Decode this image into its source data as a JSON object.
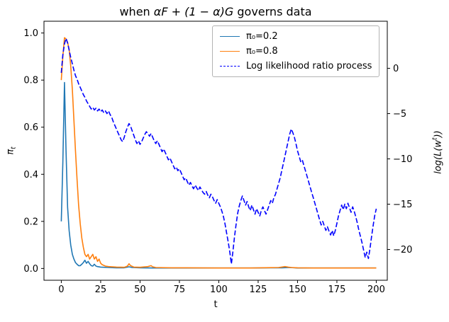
{
  "figure": {
    "title_parts": {
      "pre": "when ",
      "math": "αF + (1 − α)G",
      "post": " governs data"
    },
    "xlabel": "t",
    "left_ylabel": {
      "base": "π",
      "sub": "t"
    },
    "right_ylabel": {
      "pre": "log(L(w",
      "sup": "t",
      "post": "))"
    }
  },
  "legend": {
    "items": [
      {
        "label": "π₀=0.2"
      },
      {
        "label": "π₀=0.8"
      },
      {
        "label": "Log likelihood ratio process"
      }
    ]
  },
  "chart_data": {
    "type": "line",
    "title": "when αF + (1 − α)G governs data",
    "xlabel": "t",
    "grid": false,
    "legend_position": "upper center-right",
    "xlim": [
      -11,
      207
    ],
    "x_ticks": [
      0,
      25,
      50,
      75,
      100,
      125,
      150,
      175,
      200
    ],
    "left_axis": {
      "label": "π_t",
      "lim": [
        -0.05,
        1.05
      ],
      "ticks": [
        0.0,
        0.2,
        0.4,
        0.6,
        0.8,
        1.0
      ]
    },
    "right_axis": {
      "label": "log(L(w^t))",
      "lim": [
        -23.4,
        5.2
      ],
      "ticks": [
        0,
        -5,
        -10,
        -15,
        -20
      ]
    },
    "series": [
      {
        "name": "π₀=0.2",
        "axis": "left",
        "color": "#1f77b4",
        "style": "solid",
        "points": [
          [
            0,
            0.2
          ],
          [
            1,
            0.45
          ],
          [
            2,
            0.79
          ],
          [
            3,
            0.5
          ],
          [
            4,
            0.26
          ],
          [
            5,
            0.16
          ],
          [
            6,
            0.1
          ],
          [
            7,
            0.06
          ],
          [
            8,
            0.04
          ],
          [
            9,
            0.025
          ],
          [
            10,
            0.018
          ],
          [
            11,
            0.012
          ],
          [
            12,
            0.012
          ],
          [
            13,
            0.018
          ],
          [
            14,
            0.025
          ],
          [
            15,
            0.035
          ],
          [
            16,
            0.022
          ],
          [
            17,
            0.03
          ],
          [
            18,
            0.02
          ],
          [
            19,
            0.012
          ],
          [
            20,
            0.01
          ],
          [
            21,
            0.018
          ],
          [
            22,
            0.01
          ],
          [
            23,
            0.008
          ],
          [
            25,
            0.006
          ],
          [
            30,
            0.004
          ],
          [
            35,
            0.003
          ],
          [
            40,
            0.003
          ],
          [
            43,
            0.007
          ],
          [
            45,
            0.004
          ],
          [
            50,
            0.003
          ],
          [
            60,
            0.002
          ],
          [
            80,
            0.002
          ],
          [
            100,
            0.002
          ],
          [
            120,
            0.002
          ],
          [
            140,
            0.003
          ],
          [
            145,
            0.004
          ],
          [
            150,
            0.002
          ],
          [
            175,
            0.002
          ],
          [
            200,
            0.002
          ]
        ]
      },
      {
        "name": "π₀=0.8",
        "axis": "left",
        "color": "#ff7f0e",
        "style": "solid",
        "points": [
          [
            0,
            0.8
          ],
          [
            1,
            0.9
          ],
          [
            2,
            0.98
          ],
          [
            3,
            0.975
          ],
          [
            4,
            0.96
          ],
          [
            5,
            0.93
          ],
          [
            6,
            0.86
          ],
          [
            7,
            0.76
          ],
          [
            8,
            0.63
          ],
          [
            9,
            0.5
          ],
          [
            10,
            0.38
          ],
          [
            11,
            0.27
          ],
          [
            12,
            0.19
          ],
          [
            13,
            0.13
          ],
          [
            14,
            0.09
          ],
          [
            15,
            0.06
          ],
          [
            16,
            0.05
          ],
          [
            17,
            0.06
          ],
          [
            18,
            0.04
          ],
          [
            19,
            0.05
          ],
          [
            20,
            0.06
          ],
          [
            21,
            0.04
          ],
          [
            22,
            0.05
          ],
          [
            23,
            0.03
          ],
          [
            24,
            0.04
          ],
          [
            25,
            0.022
          ],
          [
            26,
            0.016
          ],
          [
            28,
            0.01
          ],
          [
            30,
            0.008
          ],
          [
            35,
            0.006
          ],
          [
            40,
            0.005
          ],
          [
            42,
            0.01
          ],
          [
            43,
            0.02
          ],
          [
            44,
            0.012
          ],
          [
            46,
            0.006
          ],
          [
            50,
            0.005
          ],
          [
            55,
            0.008
          ],
          [
            57,
            0.012
          ],
          [
            58,
            0.007
          ],
          [
            60,
            0.004
          ],
          [
            70,
            0.003
          ],
          [
            80,
            0.003
          ],
          [
            100,
            0.002
          ],
          [
            120,
            0.002
          ],
          [
            138,
            0.004
          ],
          [
            140,
            0.006
          ],
          [
            142,
            0.008
          ],
          [
            144,
            0.006
          ],
          [
            146,
            0.004
          ],
          [
            150,
            0.003
          ],
          [
            160,
            0.002
          ],
          [
            180,
            0.002
          ],
          [
            200,
            0.002
          ]
        ]
      },
      {
        "name": "Log likelihood ratio process",
        "axis": "right",
        "color": "#0000ff",
        "style": "dashed",
        "points": [
          [
            0,
            -0.5
          ],
          [
            1,
            1.5
          ],
          [
            2,
            2.7
          ],
          [
            3,
            3.3
          ],
          [
            4,
            2.8
          ],
          [
            5,
            2.0
          ],
          [
            6,
            1.2
          ],
          [
            7,
            0.5
          ],
          [
            8,
            -0.2
          ],
          [
            9,
            -0.8
          ],
          [
            10,
            -1.2
          ],
          [
            11,
            -1.7
          ],
          [
            12,
            -2.1
          ],
          [
            13,
            -2.5
          ],
          [
            14,
            -2.9
          ],
          [
            15,
            -3.2
          ],
          [
            16,
            -3.6
          ],
          [
            17,
            -3.9
          ],
          [
            18,
            -4.2
          ],
          [
            19,
            -4.5
          ],
          [
            20,
            -4.3
          ],
          [
            21,
            -4.6
          ],
          [
            22,
            -4.4
          ],
          [
            23,
            -4.7
          ],
          [
            24,
            -4.5
          ],
          [
            25,
            -4.8
          ],
          [
            26,
            -4.6
          ],
          [
            27,
            -4.9
          ],
          [
            28,
            -4.7
          ],
          [
            29,
            -5.0
          ],
          [
            30,
            -4.7
          ],
          [
            31,
            -5.1
          ],
          [
            32,
            -5.4
          ],
          [
            33,
            -5.9
          ],
          [
            34,
            -6.3
          ],
          [
            35,
            -6.7
          ],
          [
            36,
            -7.1
          ],
          [
            37,
            -7.5
          ],
          [
            38,
            -7.9
          ],
          [
            39,
            -8.1
          ],
          [
            40,
            -7.6
          ],
          [
            41,
            -7.0
          ],
          [
            42,
            -6.5
          ],
          [
            43,
            -6.1
          ],
          [
            44,
            -6.4
          ],
          [
            45,
            -6.9
          ],
          [
            46,
            -7.4
          ],
          [
            47,
            -7.9
          ],
          [
            48,
            -8.3
          ],
          [
            49,
            -8.0
          ],
          [
            50,
            -8.4
          ],
          [
            51,
            -8.1
          ],
          [
            52,
            -7.7
          ],
          [
            53,
            -7.3
          ],
          [
            54,
            -7.0
          ],
          [
            55,
            -7.2
          ],
          [
            56,
            -7.5
          ],
          [
            57,
            -7.2
          ],
          [
            58,
            -7.6
          ],
          [
            59,
            -8.0
          ],
          [
            60,
            -8.3
          ],
          [
            61,
            -8.0
          ],
          [
            62,
            -8.4
          ],
          [
            63,
            -8.8
          ],
          [
            64,
            -9.2
          ],
          [
            65,
            -8.9
          ],
          [
            66,
            -9.3
          ],
          [
            67,
            -9.7
          ],
          [
            68,
            -10.1
          ],
          [
            69,
            -9.9
          ],
          [
            70,
            -10.3
          ],
          [
            71,
            -10.7
          ],
          [
            72,
            -11.1
          ],
          [
            73,
            -10.9
          ],
          [
            74,
            -11.3
          ],
          [
            75,
            -11.1
          ],
          [
            76,
            -11.5
          ],
          [
            77,
            -11.9
          ],
          [
            78,
            -12.3
          ],
          [
            79,
            -12.1
          ],
          [
            80,
            -12.5
          ],
          [
            81,
            -12.9
          ],
          [
            82,
            -12.6
          ],
          [
            83,
            -13.0
          ],
          [
            84,
            -13.3
          ],
          [
            85,
            -12.9
          ],
          [
            86,
            -13.2
          ],
          [
            87,
            -13.5
          ],
          [
            88,
            -13.1
          ],
          [
            89,
            -13.4
          ],
          [
            90,
            -13.7
          ],
          [
            91,
            -13.9
          ],
          [
            92,
            -13.6
          ],
          [
            93,
            -14.0
          ],
          [
            94,
            -14.3
          ],
          [
            95,
            -13.9
          ],
          [
            96,
            -14.2
          ],
          [
            97,
            -14.6
          ],
          [
            98,
            -14.9
          ],
          [
            99,
            -14.5
          ],
          [
            100,
            -14.9
          ],
          [
            101,
            -15.3
          ],
          [
            102,
            -15.8
          ],
          [
            103,
            -16.4
          ],
          [
            104,
            -17.2
          ],
          [
            105,
            -18.2
          ],
          [
            106,
            -19.2
          ],
          [
            107,
            -20.3
          ],
          [
            108,
            -21.6
          ],
          [
            109,
            -20.2
          ],
          [
            110,
            -18.6
          ],
          [
            111,
            -17.2
          ],
          [
            112,
            -16.0
          ],
          [
            113,
            -15.2
          ],
          [
            114,
            -14.6
          ],
          [
            115,
            -14.1
          ],
          [
            116,
            -14.6
          ],
          [
            117,
            -15.1
          ],
          [
            118,
            -14.7
          ],
          [
            119,
            -15.3
          ],
          [
            120,
            -15.7
          ],
          [
            121,
            -15.1
          ],
          [
            122,
            -15.6
          ],
          [
            123,
            -16.1
          ],
          [
            124,
            -15.5
          ],
          [
            125,
            -15.9
          ],
          [
            126,
            -16.3
          ],
          [
            127,
            -15.7
          ],
          [
            128,
            -15.3
          ],
          [
            129,
            -15.7
          ],
          [
            130,
            -16.1
          ],
          [
            131,
            -15.6
          ],
          [
            132,
            -15.1
          ],
          [
            133,
            -14.6
          ],
          [
            134,
            -14.9
          ],
          [
            135,
            -14.3
          ],
          [
            136,
            -13.9
          ],
          [
            137,
            -13.3
          ],
          [
            138,
            -12.7
          ],
          [
            139,
            -12.1
          ],
          [
            140,
            -11.3
          ],
          [
            141,
            -10.5
          ],
          [
            142,
            -9.7
          ],
          [
            143,
            -8.9
          ],
          [
            144,
            -8.1
          ],
          [
            145,
            -7.3
          ],
          [
            146,
            -6.7
          ],
          [
            147,
            -7.1
          ],
          [
            148,
            -7.6
          ],
          [
            149,
            -8.3
          ],
          [
            150,
            -9.1
          ],
          [
            151,
            -9.7
          ],
          [
            152,
            -10.3
          ],
          [
            153,
            -10.1
          ],
          [
            154,
            -10.7
          ],
          [
            155,
            -11.3
          ],
          [
            156,
            -11.9
          ],
          [
            157,
            -12.5
          ],
          [
            158,
            -13.1
          ],
          [
            159,
            -13.7
          ],
          [
            160,
            -14.3
          ],
          [
            161,
            -14.9
          ],
          [
            162,
            -15.5
          ],
          [
            163,
            -16.1
          ],
          [
            164,
            -16.7
          ],
          [
            165,
            -17.3
          ],
          [
            166,
            -16.9
          ],
          [
            167,
            -17.4
          ],
          [
            168,
            -17.9
          ],
          [
            169,
            -17.5
          ],
          [
            170,
            -18.0
          ],
          [
            171,
            -18.4
          ],
          [
            172,
            -17.9
          ],
          [
            173,
            -18.5
          ],
          [
            174,
            -17.9
          ],
          [
            175,
            -17.1
          ],
          [
            176,
            -16.3
          ],
          [
            177,
            -15.7
          ],
          [
            178,
            -15.1
          ],
          [
            179,
            -15.6
          ],
          [
            180,
            -15.0
          ],
          [
            181,
            -15.5
          ],
          [
            182,
            -14.9
          ],
          [
            183,
            -15.4
          ],
          [
            184,
            -15.9
          ],
          [
            185,
            -15.3
          ],
          [
            186,
            -15.8
          ],
          [
            187,
            -16.4
          ],
          [
            188,
            -17.1
          ],
          [
            189,
            -17.9
          ],
          [
            190,
            -18.6
          ],
          [
            191,
            -19.3
          ],
          [
            192,
            -20.1
          ],
          [
            193,
            -20.9
          ],
          [
            194,
            -20.3
          ],
          [
            195,
            -21.0
          ],
          [
            196,
            -19.9
          ],
          [
            197,
            -18.6
          ],
          [
            198,
            -17.4
          ],
          [
            199,
            -16.3
          ],
          [
            200,
            -15.5
          ]
        ]
      }
    ]
  }
}
